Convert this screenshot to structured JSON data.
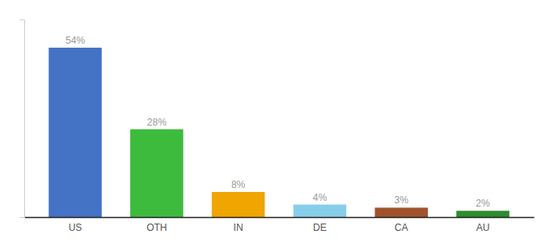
{
  "chart_data": {
    "type": "bar",
    "categories": [
      "US",
      "OTH",
      "IN",
      "DE",
      "CA",
      "AU"
    ],
    "values": [
      54,
      28,
      8,
      4,
      3,
      2
    ],
    "value_labels": [
      "54%",
      "28%",
      "8%",
      "4%",
      "3%",
      "2%"
    ],
    "data_labels": true,
    "colors": [
      "#4472c4",
      "#3dbb3d",
      "#f0a500",
      "#87ceeb",
      "#a0522d",
      "#2d8c2d"
    ],
    "ylim": [
      0,
      63
    ],
    "grid": false,
    "tick_labels": "x"
  }
}
